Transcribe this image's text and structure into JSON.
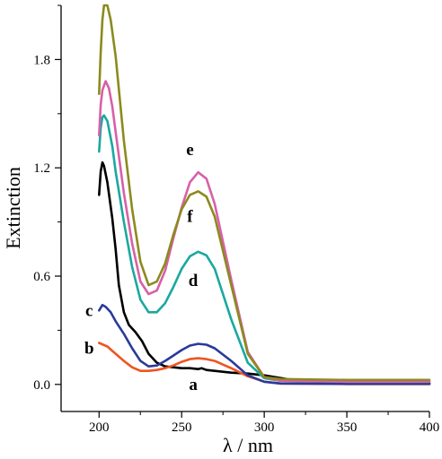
{
  "chart_data": {
    "type": "line",
    "xlabel": "λ / nm",
    "ylabel": "Extinction",
    "xlim": [
      177,
      400
    ],
    "ylim": [
      -0.15,
      2.1
    ],
    "x_ticks": [
      {
        "value": 200,
        "label": "200"
      },
      {
        "value": 250,
        "label": "250"
      },
      {
        "value": 300,
        "label": "300"
      },
      {
        "value": 350,
        "label": "350"
      },
      {
        "value": 400,
        "label": "400"
      }
    ],
    "y_ticks": [
      {
        "value": 0.0,
        "label": "0.0"
      },
      {
        "value": 0.6,
        "label": "0.6"
      },
      {
        "value": 1.2,
        "label": "1.2"
      },
      {
        "value": 1.8,
        "label": "1.8"
      }
    ],
    "grid": false,
    "series": [
      {
        "name": "a",
        "color": "#000000",
        "points": [
          [
            200,
            1.05
          ],
          [
            201,
            1.18
          ],
          [
            202,
            1.23
          ],
          [
            203,
            1.21
          ],
          [
            205,
            1.12
          ],
          [
            208,
            0.92
          ],
          [
            210,
            0.75
          ],
          [
            212,
            0.55
          ],
          [
            215,
            0.4
          ],
          [
            218,
            0.33
          ],
          [
            222,
            0.29
          ],
          [
            226,
            0.24
          ],
          [
            230,
            0.17
          ],
          [
            235,
            0.12
          ],
          [
            240,
            0.1
          ],
          [
            245,
            0.095
          ],
          [
            250,
            0.09
          ],
          [
            255,
            0.09
          ],
          [
            260,
            0.085
          ],
          [
            262,
            0.09
          ],
          [
            265,
            0.08
          ],
          [
            270,
            0.075
          ],
          [
            280,
            0.065
          ],
          [
            290,
            0.06
          ],
          [
            300,
            0.05
          ],
          [
            320,
            0.02
          ],
          [
            350,
            0.01
          ],
          [
            400,
            0.005
          ]
        ],
        "label": {
          "text": "a",
          "x": 257,
          "y": 0.0
        }
      },
      {
        "name": "b",
        "color": "#ee5522",
        "points": [
          [
            200,
            0.23
          ],
          [
            205,
            0.21
          ],
          [
            210,
            0.17
          ],
          [
            215,
            0.13
          ],
          [
            220,
            0.095
          ],
          [
            225,
            0.075
          ],
          [
            230,
            0.075
          ],
          [
            235,
            0.08
          ],
          [
            240,
            0.09
          ],
          [
            245,
            0.105
          ],
          [
            250,
            0.125
          ],
          [
            255,
            0.14
          ],
          [
            260,
            0.145
          ],
          [
            265,
            0.14
          ],
          [
            270,
            0.13
          ],
          [
            280,
            0.09
          ],
          [
            290,
            0.045
          ],
          [
            300,
            0.015
          ],
          [
            310,
            0.005
          ],
          [
            350,
            0.002
          ],
          [
            400,
            0.002
          ]
        ],
        "label": {
          "text": "b",
          "x": 194,
          "y": 0.2
        }
      },
      {
        "name": "c",
        "color": "#2a3a9a",
        "points": [
          [
            200,
            0.41
          ],
          [
            202,
            0.44
          ],
          [
            204,
            0.43
          ],
          [
            207,
            0.4
          ],
          [
            210,
            0.35
          ],
          [
            215,
            0.28
          ],
          [
            220,
            0.2
          ],
          [
            225,
            0.13
          ],
          [
            230,
            0.1
          ],
          [
            235,
            0.105
          ],
          [
            240,
            0.13
          ],
          [
            245,
            0.16
          ],
          [
            250,
            0.19
          ],
          [
            255,
            0.215
          ],
          [
            260,
            0.225
          ],
          [
            265,
            0.22
          ],
          [
            270,
            0.2
          ],
          [
            280,
            0.13
          ],
          [
            290,
            0.05
          ],
          [
            300,
            0.015
          ],
          [
            310,
            0.005
          ],
          [
            350,
            0.003
          ],
          [
            400,
            0.003
          ]
        ],
        "label": {
          "text": "c",
          "x": 194,
          "y": 0.41
        }
      },
      {
        "name": "d",
        "color": "#1aa8a0",
        "points": [
          [
            200,
            1.29
          ],
          [
            201,
            1.42
          ],
          [
            202,
            1.48
          ],
          [
            203,
            1.49
          ],
          [
            205,
            1.46
          ],
          [
            208,
            1.32
          ],
          [
            210,
            1.18
          ],
          [
            215,
            0.9
          ],
          [
            220,
            0.65
          ],
          [
            225,
            0.47
          ],
          [
            230,
            0.4
          ],
          [
            235,
            0.4
          ],
          [
            240,
            0.45
          ],
          [
            245,
            0.54
          ],
          [
            250,
            0.64
          ],
          [
            255,
            0.71
          ],
          [
            260,
            0.735
          ],
          [
            265,
            0.715
          ],
          [
            270,
            0.64
          ],
          [
            280,
            0.36
          ],
          [
            290,
            0.12
          ],
          [
            300,
            0.035
          ],
          [
            310,
            0.02
          ],
          [
            350,
            0.015
          ],
          [
            400,
            0.015
          ]
        ],
        "label": {
          "text": "d",
          "x": 257,
          "y": 0.575
        }
      },
      {
        "name": "e",
        "color": "#d860a8",
        "points": [
          [
            200,
            1.38
          ],
          [
            201,
            1.55
          ],
          [
            202,
            1.63
          ],
          [
            204,
            1.68
          ],
          [
            206,
            1.64
          ],
          [
            208,
            1.54
          ],
          [
            210,
            1.4
          ],
          [
            215,
            1.06
          ],
          [
            220,
            0.78
          ],
          [
            225,
            0.57
          ],
          [
            230,
            0.5
          ],
          [
            235,
            0.52
          ],
          [
            240,
            0.63
          ],
          [
            245,
            0.81
          ],
          [
            250,
            0.98
          ],
          [
            255,
            1.12
          ],
          [
            260,
            1.175
          ],
          [
            265,
            1.14
          ],
          [
            270,
            1.0
          ],
          [
            280,
            0.58
          ],
          [
            290,
            0.18
          ],
          [
            300,
            0.04
          ],
          [
            310,
            0.02
          ],
          [
            350,
            0.015
          ],
          [
            400,
            0.015
          ]
        ],
        "label": {
          "text": "e",
          "x": 255,
          "y": 1.3
        }
      },
      {
        "name": "f",
        "color": "#8c8a1e",
        "points": [
          [
            200,
            1.61
          ],
          [
            201,
            1.84
          ],
          [
            202,
            2.02
          ],
          [
            203,
            2.1
          ],
          [
            205,
            2.1
          ],
          [
            207,
            2.02
          ],
          [
            210,
            1.82
          ],
          [
            215,
            1.35
          ],
          [
            220,
            0.97
          ],
          [
            225,
            0.68
          ],
          [
            230,
            0.55
          ],
          [
            235,
            0.57
          ],
          [
            240,
            0.67
          ],
          [
            245,
            0.83
          ],
          [
            250,
            0.97
          ],
          [
            255,
            1.05
          ],
          [
            260,
            1.07
          ],
          [
            265,
            1.04
          ],
          [
            270,
            0.93
          ],
          [
            280,
            0.55
          ],
          [
            290,
            0.17
          ],
          [
            300,
            0.04
          ],
          [
            310,
            0.03
          ],
          [
            350,
            0.025
          ],
          [
            400,
            0.025
          ]
        ],
        "label": {
          "text": "f",
          "x": 255,
          "y": 0.93
        }
      }
    ]
  }
}
